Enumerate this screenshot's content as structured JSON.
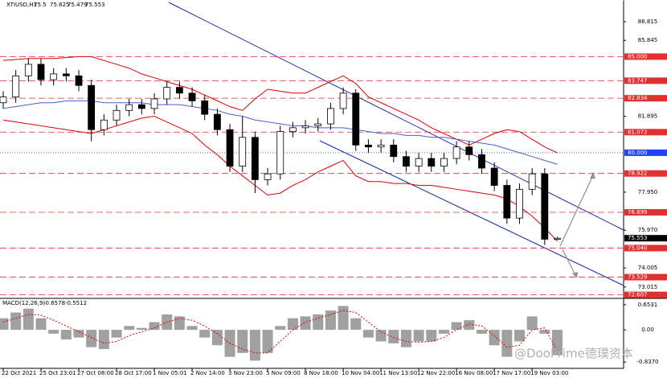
{
  "watermark": "@DooPrime德璞资本",
  "chart_data": [
    {
      "type": "candlestick",
      "symbol": "XTIUSD,H1",
      "categories": [
        "22 Oct 2021",
        null,
        null,
        "25 Oct 23:01",
        null,
        null,
        "27 Oct 08:00",
        null,
        null,
        "28 Oct 17:00",
        null,
        null,
        "1 Nov 05:01",
        null,
        null,
        "2 Nov 14:00",
        null,
        null,
        "3 Nov 23:00",
        null,
        null,
        "5 Nov 09:00",
        null,
        null,
        "8 Nov 18:00",
        null,
        null,
        "10 Nov 04:00",
        null,
        null,
        "11 Nov 13:00",
        null,
        null,
        "12 Nov 22:00",
        null,
        null,
        "16 Nov 08:00",
        null,
        null,
        "17 Nov 17:00",
        null,
        null,
        "19 Nov 03:00",
        null,
        null
      ],
      "open": [
        82.6,
        82.9,
        84.0,
        84.6,
        83.8,
        84.1,
        84.0,
        83.5,
        81.2,
        81.7,
        82.2,
        82.5,
        82.3,
        82.8,
        83.4,
        83.1,
        82.7,
        82.0,
        81.2,
        79.3,
        80.8,
        78.6,
        78.9,
        81.1,
        81.3,
        81.4,
        81.5,
        82.3,
        83.1,
        80.4,
        80.3,
        80.4,
        79.8,
        79.3,
        79.7,
        79.3,
        79.7,
        80.3,
        79.9,
        79.2,
        78.3,
        76.6,
        78.1,
        78.9,
        75.5
      ],
      "high": [
        83.2,
        84.3,
        84.9,
        84.9,
        84.4,
        84.4,
        84.3,
        83.8,
        82.0,
        82.5,
        82.8,
        82.8,
        83.1,
        83.7,
        83.7,
        83.4,
        83.0,
        82.3,
        81.5,
        81.9,
        81.1,
        79.2,
        81.4,
        81.6,
        81.7,
        81.8,
        82.6,
        83.4,
        83.3,
        80.7,
        80.7,
        80.7,
        80.1,
        80.0,
        80.0,
        80.0,
        80.6,
        80.6,
        80.2,
        79.5,
        78.6,
        78.4,
        79.2,
        79.2,
        75.625
      ],
      "low": [
        82.3,
        82.6,
        83.7,
        83.5,
        83.5,
        83.7,
        83.2,
        80.6,
        80.9,
        81.4,
        81.9,
        82.0,
        82.0,
        82.5,
        82.8,
        82.4,
        81.7,
        80.9,
        79.0,
        79.0,
        77.9,
        78.3,
        78.6,
        80.8,
        81.0,
        81.1,
        81.2,
        82.0,
        80.1,
        80.0,
        80.0,
        79.5,
        79.0,
        79.0,
        79.0,
        79.0,
        79.4,
        79.6,
        78.9,
        78.0,
        76.3,
        76.3,
        77.8,
        75.2,
        75.479
      ],
      "close": [
        82.9,
        84.0,
        84.6,
        83.8,
        84.1,
        84.0,
        83.5,
        81.2,
        81.7,
        82.2,
        82.5,
        82.3,
        82.8,
        83.4,
        83.1,
        82.7,
        82.0,
        81.2,
        79.3,
        80.8,
        78.6,
        78.9,
        81.1,
        81.3,
        81.4,
        81.5,
        82.3,
        83.1,
        80.4,
        80.3,
        80.4,
        79.8,
        79.3,
        79.7,
        79.3,
        79.7,
        80.3,
        79.9,
        79.2,
        78.3,
        76.6,
        78.1,
        78.9,
        75.5,
        75.553
      ],
      "upper_band": [
        84.8,
        84.85,
        84.9,
        84.9,
        84.9,
        84.95,
        85.0,
        85.0,
        84.8,
        84.6,
        84.4,
        84.1,
        83.9,
        83.7,
        83.5,
        83.3,
        83.0,
        82.7,
        82.4,
        82.2,
        82.8,
        83.3,
        83.2,
        83.1,
        83.1,
        83.4,
        83.7,
        84.0,
        83.6,
        82.9,
        82.6,
        82.3,
        82.0,
        81.7,
        81.3,
        81.0,
        80.7,
        80.4,
        80.7,
        81.0,
        81.2,
        81.1,
        80.7,
        80.3,
        80.0
      ],
      "lower_band": [
        81.7,
        81.6,
        81.5,
        81.4,
        81.3,
        81.2,
        81.1,
        81.0,
        81.2,
        81.4,
        81.6,
        81.8,
        81.9,
        81.6,
        81.3,
        81.0,
        80.4,
        79.9,
        79.3,
        78.8,
        78.3,
        77.8,
        77.9,
        78.3,
        78.6,
        79.0,
        79.3,
        79.6,
        78.8,
        78.5,
        78.5,
        78.4,
        78.4,
        78.3,
        78.3,
        78.2,
        78.1,
        78.0,
        77.9,
        77.8,
        77.6,
        77.2,
        76.7,
        76.1,
        75.4
      ],
      "ma": [
        82.3,
        82.4,
        82.5,
        82.6,
        82.6,
        82.7,
        82.7,
        82.7,
        82.6,
        82.6,
        82.6,
        82.6,
        82.5,
        82.5,
        82.5,
        82.4,
        82.3,
        82.2,
        82.0,
        81.9,
        81.7,
        81.6,
        81.5,
        81.4,
        81.4,
        81.3,
        81.3,
        81.3,
        81.2,
        81.1,
        81.0,
        81.0,
        80.9,
        80.9,
        80.8,
        80.8,
        80.7,
        80.6,
        80.5,
        80.4,
        80.2,
        80.0,
        79.8,
        79.6,
        79.4
      ],
      "band_color": "#e00000",
      "ma_color": "#4a5fd0",
      "ylim": [
        72.465,
        87.945
      ],
      "yticks": [
        86.815,
        85.845,
        81.895,
        {
          "value": 77.95,
          "label": "77.950"
        },
        {
          "value": 75.97,
          "label": "75.970"
        },
        74.005,
        73.015
      ],
      "levels": [
        {
          "value": 85,
          "label": "85.000"
        },
        83.747,
        82.834,
        81.072,
        78.922,
        76.899,
        {
          "value": 75.04,
          "label": "75.040"
        },
        73.529,
        72.607
      ],
      "level_color": "#e03030",
      "pivot": {
        "value": 80,
        "label": "80.000"
      },
      "pivot_color": "#2040ff"
    },
    {
      "type": "macd",
      "label": "MACD(12,26,9)",
      "values": [
        0.3,
        0.45,
        0.55,
        0.3,
        -0.1,
        -0.25,
        -0.2,
        -0.45,
        -0.5,
        -0.2,
        0.1,
        0.05,
        0.2,
        0.4,
        0.35,
        0.1,
        -0.2,
        -0.4,
        -0.7,
        -0.6,
        -0.8,
        -0.6,
        0.1,
        0.3,
        0.35,
        0.4,
        0.5,
        0.62,
        0.3,
        -0.2,
        -0.3,
        -0.35,
        -0.45,
        -0.3,
        -0.3,
        -0.1,
        0.2,
        0.25,
        -0.1,
        -0.4,
        -0.7,
        -0.3,
        0.35,
        -0.1,
        -0.6578
      ],
      "signal": [
        0.2,
        0.3,
        0.4,
        0.38,
        0.25,
        0.1,
        -0.05,
        -0.2,
        -0.35,
        -0.3,
        -0.15,
        -0.05,
        0.05,
        0.2,
        0.3,
        0.25,
        0.1,
        -0.1,
        -0.35,
        -0.5,
        -0.6,
        -0.6,
        -0.3,
        0,
        0.2,
        0.3,
        0.4,
        0.5,
        0.45,
        0.2,
        -0.05,
        -0.2,
        -0.3,
        -0.32,
        -0.3,
        -0.2,
        0,
        0.15,
        0.1,
        -0.15,
        -0.45,
        -0.4,
        0,
        0.05,
        -0.5512
      ],
      "color": "#a0a0a0",
      "signal_color": "#e00000",
      "ylim": [
        -1.0,
        0.775
      ],
      "yticks": [
        0.6531,
        {
          "value": 0,
          "label": "0.00"
        },
        {
          "value": -0.837,
          "label": "-0.8370"
        }
      ]
    }
  ]
}
